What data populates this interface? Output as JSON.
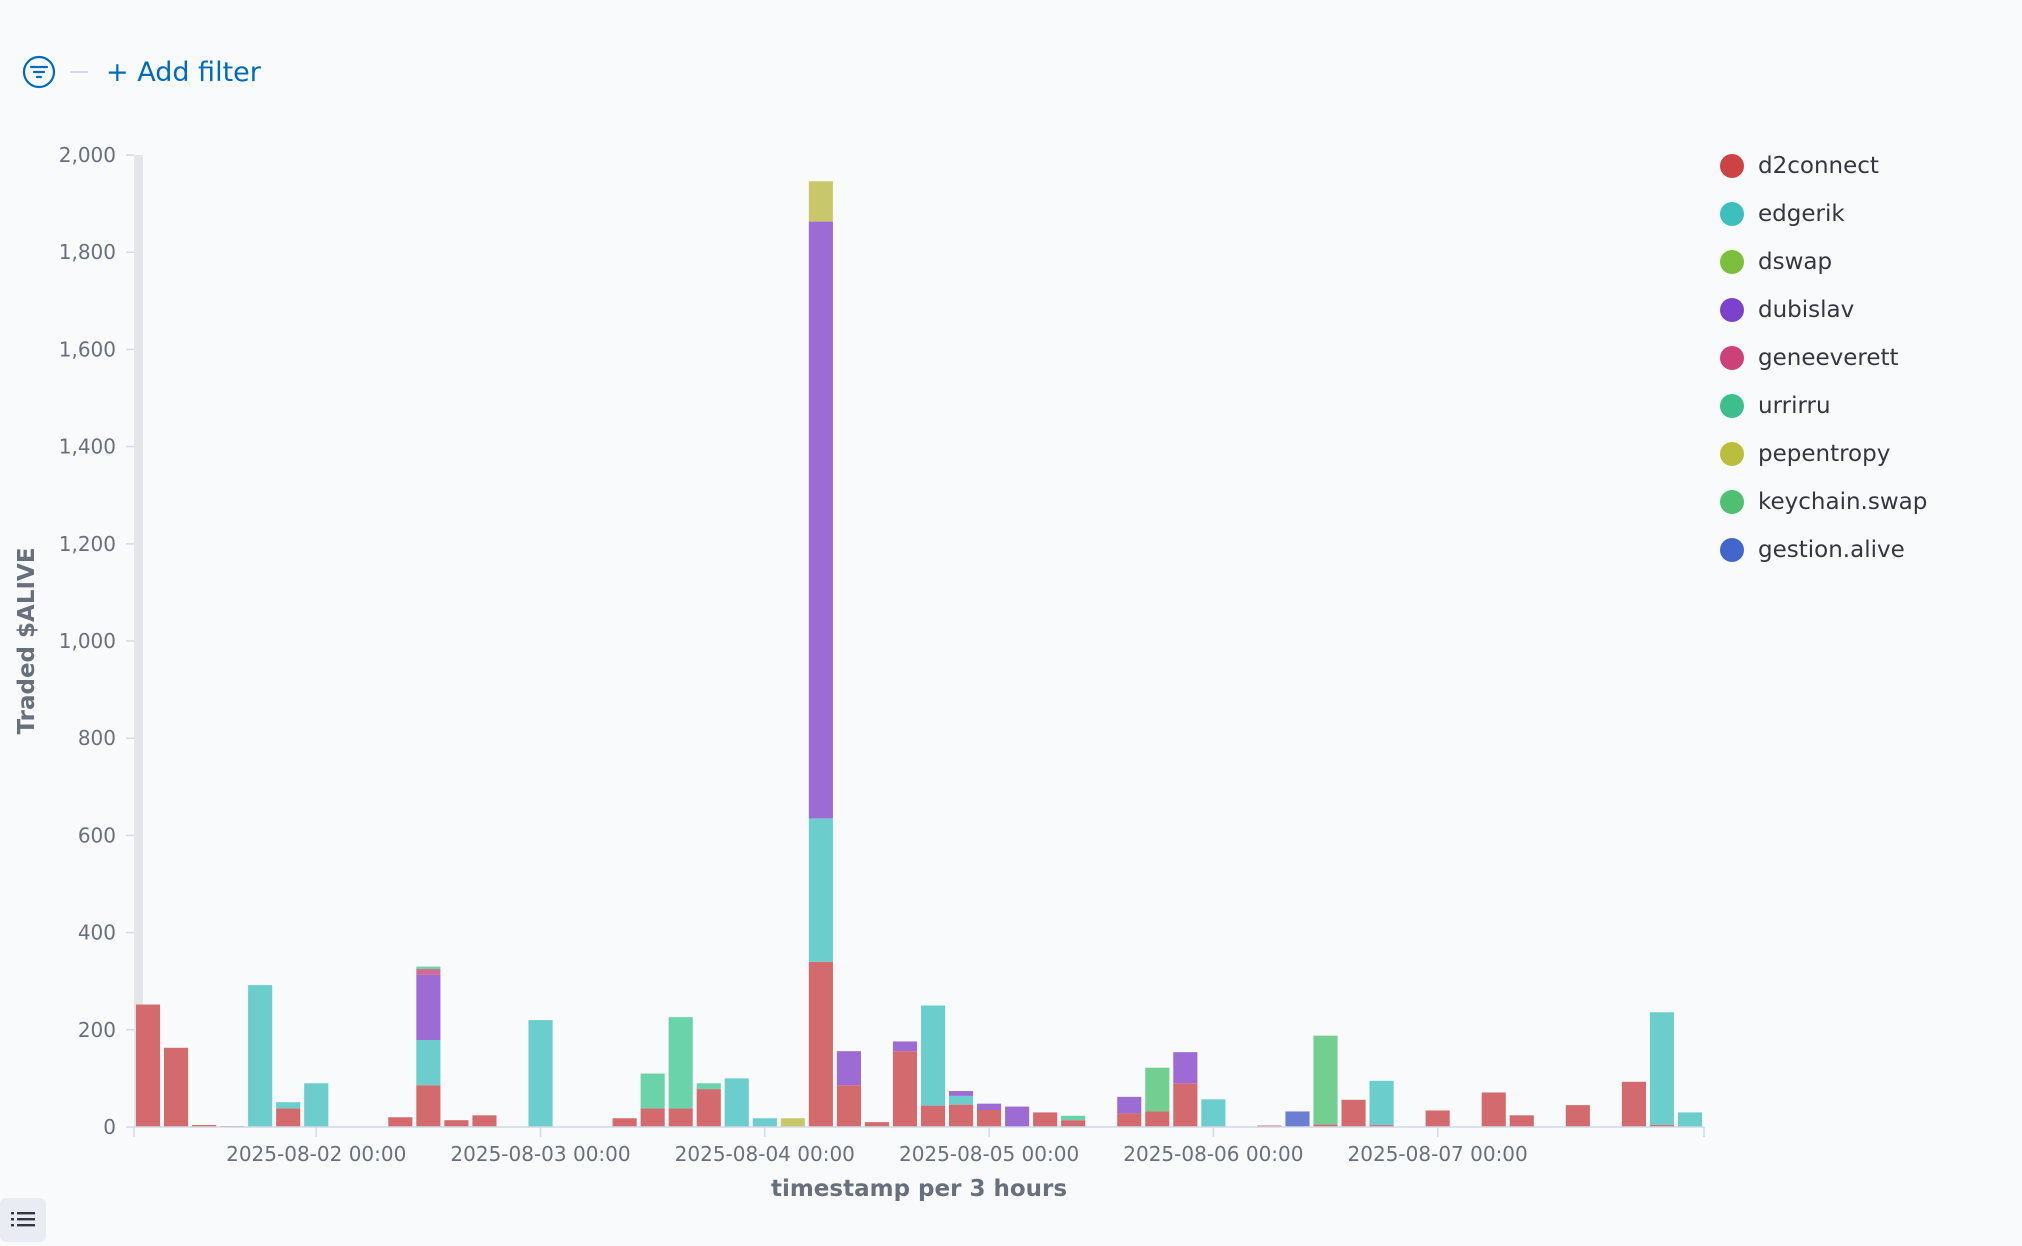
{
  "filter": {
    "add_label": "+ Add filter",
    "icon": "filter-icon"
  },
  "toolbar": {
    "legend_toggle_icon": "list-icon"
  },
  "chart_data": {
    "type": "bar",
    "stacked": true,
    "ylabel": "Traded $ALIVE",
    "xlabel": "timestamp per 3 hours",
    "ylim": [
      0,
      2000
    ],
    "yticks": [
      0,
      200,
      400,
      600,
      800,
      1000,
      1200,
      1400,
      1600,
      1800,
      2000
    ],
    "xticks": [
      {
        "bin": 6,
        "label": "2025-08-02 00:00"
      },
      {
        "bin": 14,
        "label": "2025-08-03 00:00"
      },
      {
        "bin": 22,
        "label": "2025-08-04 00:00"
      },
      {
        "bin": 30,
        "label": "2025-08-05 00:00"
      },
      {
        "bin": 38,
        "label": "2025-08-06 00:00"
      },
      {
        "bin": 46,
        "label": "2025-08-07 00:00"
      }
    ],
    "bins": 56,
    "legend_position": "right",
    "series": [
      {
        "name": "d2connect",
        "color": "#d36a6d",
        "legend_color": "#cc4245"
      },
      {
        "name": "edgerik",
        "color": "#6bcdcc",
        "legend_color": "#3dbfbe"
      },
      {
        "name": "dswap",
        "color": "#a3cc6b",
        "legend_color": "#7cbf3d"
      },
      {
        "name": "dubislav",
        "color": "#9c6bd3",
        "legend_color": "#7d42cc"
      },
      {
        "name": "geneeverett",
        "color": "#d36a96",
        "legend_color": "#cc4278"
      },
      {
        "name": "urrirru",
        "color": "#6bd3a9",
        "legend_color": "#3dbf8c"
      },
      {
        "name": "pepentropy",
        "color": "#c8c86b",
        "legend_color": "#b9bf3d"
      },
      {
        "name": "keychain.swap",
        "color": "#72cf91",
        "legend_color": "#4fc072"
      },
      {
        "name": "gestion.alive",
        "color": "#6b7ed3",
        "legend_color": "#4266cc"
      }
    ],
    "data": [
      {
        "bin": 0,
        "segments": [
          [
            "d2connect",
            252
          ]
        ]
      },
      {
        "bin": 1,
        "segments": [
          [
            "d2connect",
            163
          ]
        ]
      },
      {
        "bin": 2,
        "segments": [
          [
            "d2connect",
            4
          ]
        ]
      },
      {
        "bin": 3,
        "segments": [
          [
            "d2connect",
            2
          ]
        ]
      },
      {
        "bin": 4,
        "segments": [
          [
            "edgerik",
            292
          ]
        ]
      },
      {
        "bin": 5,
        "segments": [
          [
            "d2connect",
            38
          ],
          [
            "edgerik",
            13
          ]
        ]
      },
      {
        "bin": 6,
        "segments": [
          [
            "edgerik",
            90
          ]
        ]
      },
      {
        "bin": 9,
        "segments": [
          [
            "d2connect",
            20
          ]
        ]
      },
      {
        "bin": 10,
        "segments": [
          [
            "d2connect",
            86
          ],
          [
            "edgerik",
            93
          ],
          [
            "dubislav",
            134
          ],
          [
            "geneeverett",
            12
          ],
          [
            "urrirru",
            5
          ]
        ]
      },
      {
        "bin": 11,
        "segments": [
          [
            "d2connect",
            14
          ]
        ]
      },
      {
        "bin": 12,
        "segments": [
          [
            "d2connect",
            24
          ]
        ]
      },
      {
        "bin": 14,
        "segments": [
          [
            "edgerik",
            220
          ]
        ]
      },
      {
        "bin": 17,
        "segments": [
          [
            "d2connect",
            18
          ]
        ]
      },
      {
        "bin": 18,
        "segments": [
          [
            "d2connect",
            38
          ],
          [
            "urrirru",
            72
          ]
        ]
      },
      {
        "bin": 19,
        "segments": [
          [
            "d2connect",
            38
          ],
          [
            "urrirru",
            188
          ]
        ]
      },
      {
        "bin": 20,
        "segments": [
          [
            "d2connect",
            78
          ],
          [
            "urrirru",
            12
          ]
        ]
      },
      {
        "bin": 21,
        "segments": [
          [
            "edgerik",
            100
          ]
        ]
      },
      {
        "bin": 22,
        "segments": [
          [
            "edgerik",
            18
          ]
        ]
      },
      {
        "bin": 23,
        "segments": [
          [
            "pepentropy",
            18
          ]
        ]
      },
      {
        "bin": 24,
        "segments": [
          [
            "d2connect",
            340
          ],
          [
            "edgerik",
            295
          ],
          [
            "dubislav",
            1228
          ],
          [
            "pepentropy",
            83
          ]
        ]
      },
      {
        "bin": 25,
        "segments": [
          [
            "d2connect",
            86
          ],
          [
            "dubislav",
            70
          ]
        ]
      },
      {
        "bin": 26,
        "segments": [
          [
            "d2connect",
            10
          ]
        ]
      },
      {
        "bin": 27,
        "segments": [
          [
            "d2connect",
            156
          ],
          [
            "dubislav",
            20
          ]
        ]
      },
      {
        "bin": 28,
        "segments": [
          [
            "d2connect",
            44
          ],
          [
            "edgerik",
            206
          ]
        ]
      },
      {
        "bin": 29,
        "segments": [
          [
            "d2connect",
            46
          ],
          [
            "edgerik",
            18
          ],
          [
            "dubislav",
            10
          ]
        ]
      },
      {
        "bin": 30,
        "segments": [
          [
            "d2connect",
            35
          ],
          [
            "dubislav",
            13
          ]
        ]
      },
      {
        "bin": 31,
        "segments": [
          [
            "dubislav",
            42
          ]
        ]
      },
      {
        "bin": 32,
        "segments": [
          [
            "d2connect",
            30
          ]
        ]
      },
      {
        "bin": 33,
        "segments": [
          [
            "d2connect",
            14
          ],
          [
            "urrirru",
            9
          ]
        ]
      },
      {
        "bin": 35,
        "segments": [
          [
            "d2connect",
            28
          ],
          [
            "dubislav",
            34
          ]
        ]
      },
      {
        "bin": 36,
        "segments": [
          [
            "d2connect",
            32
          ],
          [
            "keychain.swap",
            90
          ]
        ]
      },
      {
        "bin": 37,
        "segments": [
          [
            "d2connect",
            90
          ],
          [
            "dubislav",
            64
          ]
        ]
      },
      {
        "bin": 38,
        "segments": [
          [
            "edgerik",
            57
          ]
        ]
      },
      {
        "bin": 40,
        "segments": [
          [
            "d2connect",
            3
          ]
        ]
      },
      {
        "bin": 41,
        "segments": [
          [
            "gestion.alive",
            32
          ]
        ]
      },
      {
        "bin": 42,
        "segments": [
          [
            "d2connect",
            5
          ],
          [
            "keychain.swap",
            183
          ]
        ]
      },
      {
        "bin": 43,
        "segments": [
          [
            "d2connect",
            56
          ]
        ]
      },
      {
        "bin": 44,
        "segments": [
          [
            "d2connect",
            4
          ],
          [
            "edgerik",
            91
          ]
        ]
      },
      {
        "bin": 46,
        "segments": [
          [
            "d2connect",
            34
          ]
        ]
      },
      {
        "bin": 48,
        "segments": [
          [
            "d2connect",
            71
          ]
        ]
      },
      {
        "bin": 49,
        "segments": [
          [
            "d2connect",
            24
          ]
        ]
      },
      {
        "bin": 51,
        "segments": [
          [
            "d2connect",
            45
          ]
        ]
      },
      {
        "bin": 53,
        "segments": [
          [
            "d2connect",
            93
          ]
        ]
      },
      {
        "bin": 54,
        "segments": [
          [
            "d2connect",
            4
          ],
          [
            "edgerik",
            232
          ]
        ]
      },
      {
        "bin": 55,
        "segments": [
          [
            "edgerik",
            30
          ]
        ]
      }
    ]
  }
}
